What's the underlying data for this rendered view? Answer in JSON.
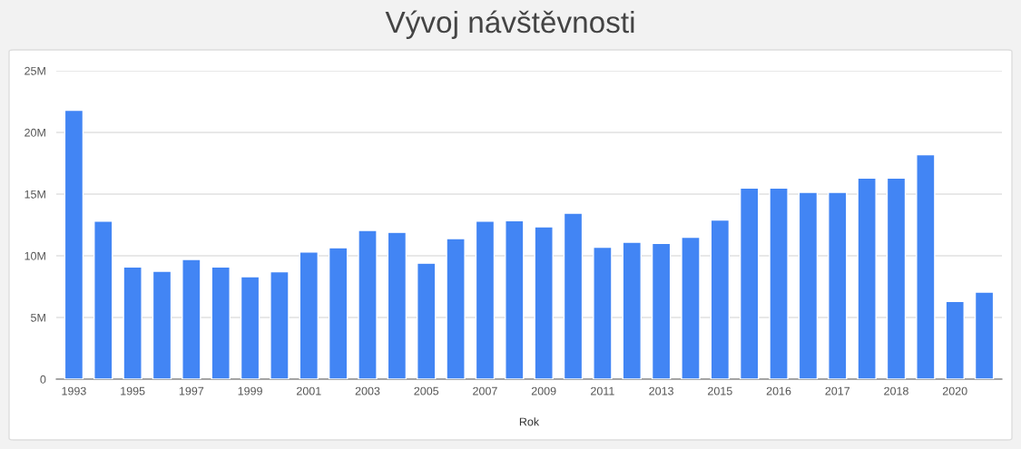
{
  "chart_data": {
    "type": "bar",
    "title": "Vývoj návštěvnosti",
    "xlabel": "Rok",
    "categories": [
      "1993",
      null,
      "1995",
      null,
      "1997",
      null,
      "1999",
      null,
      "2001",
      null,
      "2003",
      null,
      "2005",
      null,
      "2007",
      null,
      "2009",
      null,
      "2011",
      null,
      "2013",
      null,
      "2015",
      null,
      "2016",
      null,
      "2017",
      null,
      "2018",
      null,
      "2020",
      null
    ],
    "values": [
      21800000,
      12800000,
      9100000,
      8750000,
      9700000,
      9100000,
      8300000,
      8700000,
      10300000,
      10650000,
      12050000,
      11900000,
      9400000,
      11400000,
      12800000,
      12850000,
      12350000,
      13450000,
      10700000,
      11100000,
      11000000,
      11500000,
      12900000,
      15500000,
      15500000,
      15150000,
      15150000,
      16300000,
      16300000,
      18200000,
      6300000,
      7050000
    ],
    "color": "#4285f4",
    "ylim": [
      0,
      25000000
    ],
    "yticks": [
      0,
      {
        "value": 5000000,
        "label": "5M"
      },
      {
        "value": 10000000,
        "label": "10M"
      },
      {
        "value": 15000000,
        "label": "15M"
      },
      {
        "value": 20000000,
        "label": "20M"
      },
      {
        "value": 25000000,
        "label": "25M"
      }
    ],
    "grid": "y"
  }
}
